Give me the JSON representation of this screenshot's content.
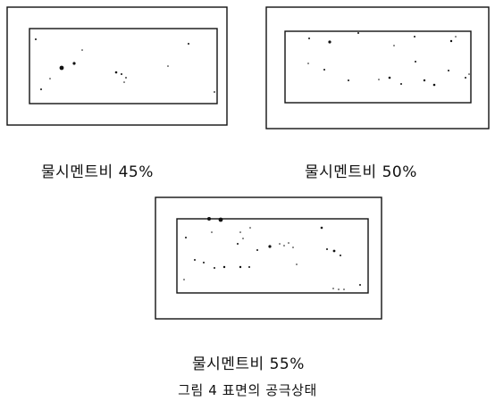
{
  "figure": {
    "title": "그림 4 표면의 공극상태",
    "line_color": "#111111",
    "panels": [
      {
        "id": "p45",
        "caption": "물시멘트비 45%"
      },
      {
        "id": "p50",
        "caption": "물시멘트비 50%"
      },
      {
        "id": "p55",
        "caption": "물시멘트비 55%"
      }
    ]
  }
}
